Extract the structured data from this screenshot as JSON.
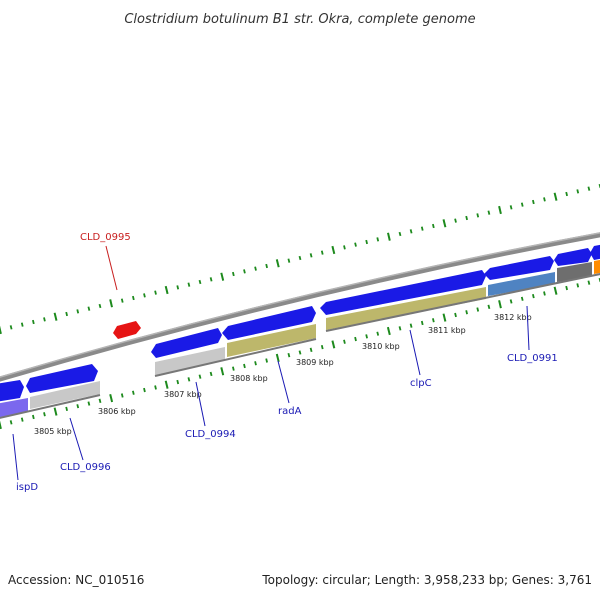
{
  "title": "Clostridium botulinum B1 str. Okra, complete genome",
  "footer": {
    "accession": "Accession: NC_010516",
    "topology": "Topology: circular; Length: 3,958,233 bp; Genes: 3,761"
  },
  "colors": {
    "cds_forward": "#1a1ae6",
    "cds_reverse_highlight": "#e61414",
    "backbone": "#7f7f7f",
    "tick_green": "#1d8a1d",
    "label_blue": "#1a1ab4",
    "label_red": "#c81e1e",
    "band_khaki": "#bdb76b",
    "band_grey": "#c8c8c8",
    "band_steelblue": "#4f83c2",
    "band_darkgrey": "#6e6e6e",
    "band_purple": "#7b68ee",
    "band_orange": "#ff8c00"
  },
  "kbp_labels": [
    "3805 kbp",
    "3806 kbp",
    "3807 kbp",
    "3808 kbp",
    "3809 kbp",
    "3810 kbp",
    "3811 kbp",
    "3812 kbp"
  ],
  "gene_labels": [
    {
      "text": "CLD_0995",
      "color": "red"
    },
    {
      "text": "ispD",
      "color": "blue"
    },
    {
      "text": "CLD_0996",
      "color": "blue"
    },
    {
      "text": "CLD_0994",
      "color": "blue"
    },
    {
      "text": "radA",
      "color": "blue"
    },
    {
      "text": "clpC",
      "color": "blue"
    },
    {
      "text": "CLD_0991",
      "color": "blue"
    }
  ]
}
